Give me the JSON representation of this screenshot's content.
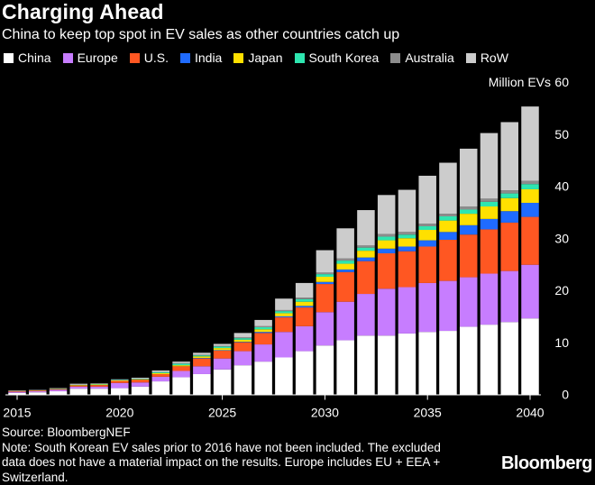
{
  "chart_data": {
    "type": "bar",
    "stacked": true,
    "title": "Charging Ahead",
    "subtitle": "China to keep top spot in EV sales as other countries catch up",
    "ylabel": "Million EVs",
    "ylim": [
      0,
      60
    ],
    "yticks": [
      0,
      10,
      20,
      30,
      40,
      50,
      60
    ],
    "xticks": [
      2015,
      2020,
      2025,
      2030,
      2035,
      2040
    ],
    "legend_position": "top",
    "categories": [
      2015,
      2016,
      2017,
      2018,
      2019,
      2020,
      2021,
      2022,
      2023,
      2024,
      2025,
      2026,
      2027,
      2028,
      2029,
      2030,
      2031,
      2032,
      2033,
      2034,
      2035,
      2036,
      2037,
      2038,
      2039,
      2040
    ],
    "series": [
      {
        "name": "China",
        "color": "#ffffff",
        "values": [
          0.3,
          0.4,
          0.6,
          1.1,
          1.1,
          1.2,
          1.5,
          2.5,
          3.3,
          3.9,
          4.8,
          5.6,
          6.3,
          7.1,
          8.3,
          9.4,
          10.4,
          11.3,
          11.3,
          11.7,
          12.0,
          12.2,
          13.0,
          13.4,
          13.9,
          14.6
        ]
      },
      {
        "name": "Europe",
        "color": "#c77dff",
        "values": [
          0.2,
          0.2,
          0.3,
          0.4,
          0.4,
          1.0,
          0.8,
          0.9,
          1.2,
          1.5,
          2.1,
          2.7,
          3.3,
          4.9,
          4.8,
          6.4,
          7.4,
          8.0,
          9.0,
          8.9,
          9.4,
          9.6,
          9.5,
          9.8,
          9.8,
          10.3
        ]
      },
      {
        "name": "U.S.",
        "color": "#ff5722",
        "values": [
          0.1,
          0.1,
          0.1,
          0.2,
          0.3,
          0.4,
          0.5,
          0.5,
          0.9,
          1.5,
          1.5,
          1.7,
          2.2,
          2.8,
          3.6,
          5.4,
          5.7,
          6.3,
          6.8,
          6.9,
          7.0,
          7.9,
          8.2,
          8.5,
          9.3,
          9.2
        ]
      },
      {
        "name": "India",
        "color": "#1f6bff",
        "values": [
          0,
          0,
          0,
          0,
          0,
          0,
          0,
          0,
          0,
          0.1,
          0.1,
          0.1,
          0.2,
          0.2,
          0.3,
          0.4,
          0.5,
          0.7,
          0.9,
          0.9,
          1.2,
          1.5,
          1.8,
          2.0,
          2.2,
          2.7
        ]
      },
      {
        "name": "Japan",
        "color": "#ffe000",
        "values": [
          0.05,
          0.05,
          0.05,
          0.1,
          0.1,
          0.1,
          0.1,
          0.2,
          0.2,
          0.3,
          0.4,
          0.4,
          0.5,
          0.6,
          0.8,
          1.0,
          1.1,
          1.3,
          1.6,
          1.6,
          2.0,
          2.2,
          2.2,
          2.4,
          2.5,
          2.6
        ]
      },
      {
        "name": "South Korea",
        "color": "#2ee6b0",
        "values": [
          0,
          0,
          0.05,
          0.05,
          0.1,
          0.1,
          0.1,
          0.2,
          0.3,
          0.2,
          0.3,
          0.3,
          0.4,
          0.4,
          0.5,
          0.5,
          0.6,
          0.6,
          0.7,
          0.7,
          0.7,
          0.8,
          0.8,
          0.9,
          0.9,
          1.0
        ]
      },
      {
        "name": "Australia",
        "color": "#8c8c8c",
        "values": [
          0,
          0,
          0,
          0,
          0,
          0,
          0,
          0,
          0.1,
          0.1,
          0.1,
          0.2,
          0.2,
          0.2,
          0.3,
          0.3,
          0.4,
          0.4,
          0.5,
          0.5,
          0.5,
          0.5,
          0.6,
          0.6,
          0.6,
          0.6
        ]
      },
      {
        "name": "RoW",
        "color": "#cccccc",
        "values": [
          0.1,
          0.1,
          0.1,
          0.2,
          0.1,
          0.1,
          0.2,
          0.3,
          0.3,
          0.4,
          0.4,
          0.8,
          1.2,
          2.2,
          2.8,
          4.3,
          5.8,
          6.8,
          7.5,
          8.1,
          9.2,
          9.8,
          11.1,
          12.6,
          13.1,
          14.3
        ]
      }
    ]
  },
  "footer": {
    "source": "Source: BloombergNEF",
    "note_line1": "Note: South Korean EV sales prior to 2016 have not been included. The excluded",
    "note_line2": "data does not have a material impact on the results. Europe includes EU + EEA +",
    "note_line3": "Switzerland."
  },
  "brand": "Bloomberg"
}
